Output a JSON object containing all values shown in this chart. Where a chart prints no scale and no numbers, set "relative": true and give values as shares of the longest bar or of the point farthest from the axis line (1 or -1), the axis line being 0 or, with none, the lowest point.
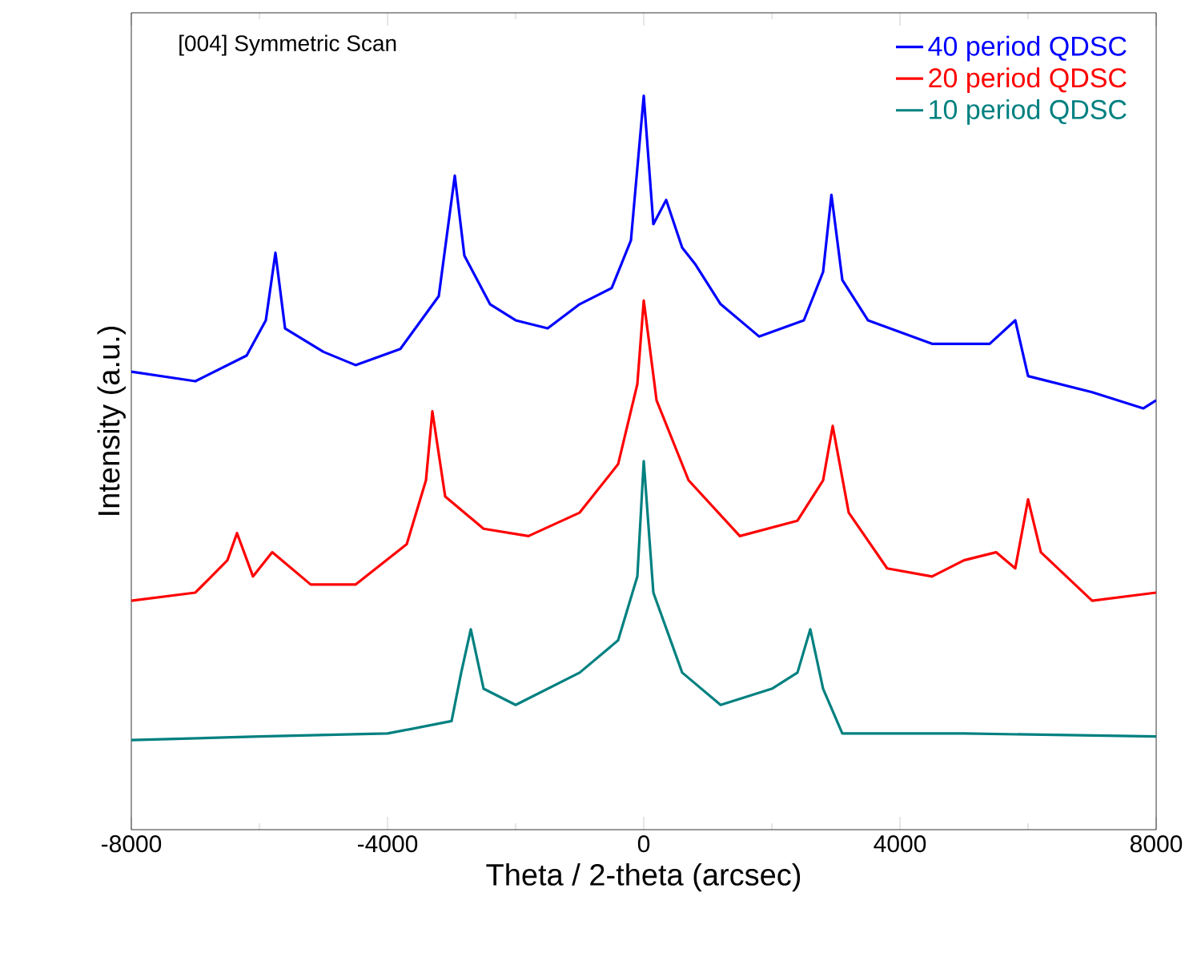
{
  "chart_data": {
    "type": "line",
    "relative": true,
    "xlabel": "Theta / 2-theta (arcsec)",
    "ylabel": "Intensity (a.u.)",
    "annotations": [
      "[004] Symmetric Scan"
    ],
    "xlim": [
      -8000,
      8000
    ],
    "xticks": [
      -8000,
      -4000,
      0,
      4000,
      8000
    ],
    "tick_labels": "x",
    "grid": false,
    "legend": "top right",
    "marker": "none",
    "line_style": "solid",
    "series": [
      {
        "name": "40 period QDSC",
        "color": "#0000ff",
        "x": [
          -8000,
          -7000,
          -6200,
          -5900,
          -5750,
          -5600,
          -5000,
          -4500,
          -3800,
          -3200,
          -2950,
          -2800,
          -2400,
          -2000,
          -1500,
          -1000,
          -500,
          -200,
          0,
          150,
          350,
          600,
          800,
          1200,
          1800,
          2500,
          2800,
          2930,
          3100,
          3500,
          4500,
          5400,
          5800,
          6000,
          7000,
          7800,
          8000
        ],
        "values": [
          0.624,
          0.611,
          0.646,
          0.694,
          0.786,
          0.683,
          0.651,
          0.633,
          0.655,
          0.727,
          0.891,
          0.782,
          0.716,
          0.694,
          0.683,
          0.716,
          0.738,
          0.803,
          1.0,
          0.825,
          0.858,
          0.793,
          0.771,
          0.716,
          0.672,
          0.694,
          0.76,
          0.865,
          0.749,
          0.694,
          0.662,
          0.662,
          0.694,
          0.618,
          0.596,
          0.574,
          0.585
        ]
      },
      {
        "name": "20 period QDSC",
        "color": "#ff0000",
        "x": [
          -8000,
          -7000,
          -6500,
          -6350,
          -6100,
          -5800,
          -5200,
          -4500,
          -3700,
          -3400,
          -3300,
          -3100,
          -2500,
          -1800,
          -1000,
          -400,
          -100,
          0,
          200,
          700,
          1500,
          2400,
          2800,
          2950,
          3200,
          3800,
          4500,
          5000,
          5500,
          5800,
          6000,
          6200,
          7000,
          8000
        ],
        "values": [
          0.312,
          0.323,
          0.367,
          0.404,
          0.345,
          0.378,
          0.334,
          0.334,
          0.389,
          0.476,
          0.57,
          0.454,
          0.41,
          0.4,
          0.432,
          0.498,
          0.607,
          0.721,
          0.585,
          0.476,
          0.4,
          0.421,
          0.476,
          0.55,
          0.432,
          0.356,
          0.345,
          0.367,
          0.378,
          0.356,
          0.45,
          0.378,
          0.312,
          0.323
        ]
      },
      {
        "name": "10 period QDSC",
        "color": "#008080",
        "x": [
          -8000,
          -6000,
          -4000,
          -3000,
          -2850,
          -2700,
          -2500,
          -2000,
          -1000,
          -400,
          -100,
          0,
          150,
          600,
          1200,
          2000,
          2400,
          2600,
          2800,
          3100,
          5000,
          8000
        ],
        "values": [
          0.122,
          0.127,
          0.131,
          0.148,
          0.214,
          0.273,
          0.192,
          0.17,
          0.214,
          0.258,
          0.345,
          0.502,
          0.323,
          0.214,
          0.17,
          0.192,
          0.214,
          0.273,
          0.192,
          0.131,
          0.131,
          0.127
        ]
      }
    ]
  }
}
